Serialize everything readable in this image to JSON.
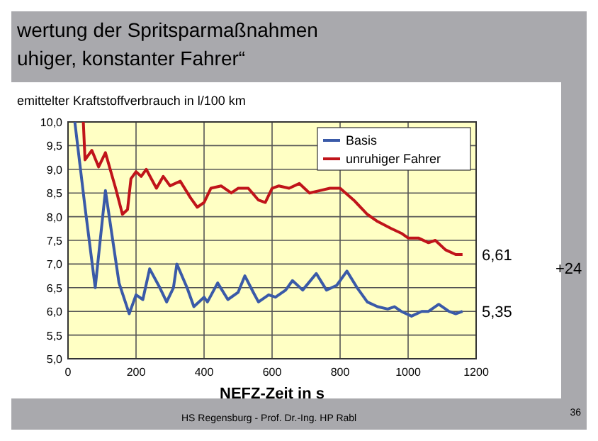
{
  "chart_data": {
    "type": "line",
    "title": "wertung der Spritsparmaßnahmen",
    "subtitle": "uhiger, konstanter Fahrer“",
    "ylabel": "emittelter Kraftstoffverbrauch in l/100 km",
    "xlabel": "NEFZ-Zeit in s",
    "xlim": [
      0,
      1200
    ],
    "xticks": [
      0,
      200,
      400,
      600,
      800,
      1000,
      1200
    ],
    "ylim": [
      5,
      10
    ],
    "yticks": [
      {
        "value": 5,
        "label": "5,0"
      },
      {
        "value": 5.5,
        "label": "5,5"
      },
      {
        "value": 6,
        "label": "6,0"
      },
      {
        "value": 6.5,
        "label": "6,5"
      },
      {
        "value": 7,
        "label": "7,0"
      },
      {
        "value": 7.5,
        "label": "7,5"
      },
      {
        "value": 8,
        "label": "8,0"
      },
      {
        "value": 8.5,
        "label": "8,5"
      },
      {
        "value": 9,
        "label": "9,0"
      },
      {
        "value": 9.5,
        "label": "9,5"
      },
      {
        "value": 10,
        "label": "10,0"
      }
    ],
    "grid": true,
    "legend": "top right",
    "line_style": "solid",
    "marker": "none",
    "series": [
      {
        "name": "Basis",
        "color": "#3a5aa8",
        "x": [
          20,
          50,
          80,
          110,
          150,
          180,
          200,
          220,
          240,
          270,
          290,
          310,
          320,
          350,
          370,
          400,
          410,
          440,
          470,
          500,
          520,
          545,
          560,
          590,
          610,
          640,
          660,
          690,
          730,
          760,
          790,
          820,
          850,
          880,
          910,
          940,
          960,
          980,
          1010,
          1040,
          1060,
          1090,
          1120,
          1140,
          1160
        ],
        "values": [
          10,
          8.2,
          6.5,
          8.55,
          6.6,
          5.95,
          6.35,
          6.25,
          6.9,
          6.5,
          6.2,
          6.5,
          7.0,
          6.5,
          6.1,
          6.3,
          6.2,
          6.6,
          6.25,
          6.4,
          6.75,
          6.4,
          6.2,
          6.35,
          6.3,
          6.45,
          6.65,
          6.45,
          6.8,
          6.45,
          6.55,
          6.85,
          6.5,
          6.2,
          6.1,
          6.05,
          6.1,
          6.0,
          5.9,
          6.0,
          6.0,
          6.15,
          6.0,
          5.95,
          6.0
        ]
      },
      {
        "name": "unruhiger Fahrer",
        "color": "#c0141a",
        "x": [
          45,
          50,
          70,
          90,
          110,
          140,
          160,
          175,
          185,
          200,
          215,
          230,
          260,
          280,
          300,
          330,
          360,
          380,
          400,
          420,
          450,
          480,
          500,
          530,
          560,
          580,
          600,
          620,
          650,
          680,
          710,
          740,
          770,
          800,
          840,
          880,
          910,
          950,
          980,
          1000,
          1030,
          1060,
          1080,
          1110,
          1140,
          1160
        ],
        "values": [
          10,
          9.2,
          9.4,
          9.05,
          9.35,
          8.6,
          8.05,
          8.15,
          8.8,
          8.95,
          8.85,
          9.0,
          8.6,
          8.85,
          8.65,
          8.75,
          8.4,
          8.2,
          8.3,
          8.6,
          8.65,
          8.5,
          8.6,
          8.6,
          8.35,
          8.3,
          8.6,
          8.65,
          8.6,
          8.7,
          8.5,
          8.55,
          8.6,
          8.6,
          8.35,
          8.05,
          7.9,
          7.75,
          7.65,
          7.55,
          7.55,
          7.45,
          7.5,
          7.3,
          7.2,
          7.2
        ]
      }
    ],
    "annotations": [
      "6,61",
      "5,35",
      "+24",
      "HS Regensburg - Prof. Dr.-Ing. HP Rabl",
      "36"
    ]
  }
}
